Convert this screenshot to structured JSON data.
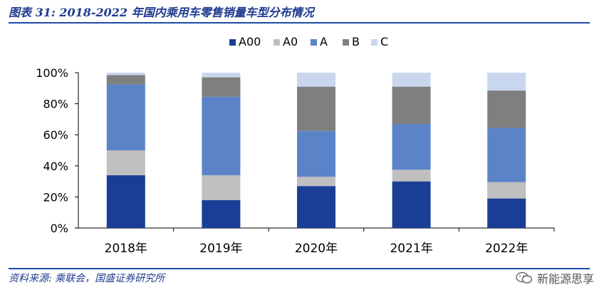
{
  "header": {
    "title": "图表 31:  2018-2022 年国内乘用车零售销量车型分布情况"
  },
  "footer": {
    "source": "资料来源:  乘联会，国盛证券研究所",
    "watermark": "新能源思享"
  },
  "chart_data": {
    "type": "bar",
    "stacked": true,
    "percent": true,
    "categories": [
      "2018年",
      "2019年",
      "2020年",
      "2021年",
      "2022年"
    ],
    "series": [
      {
        "name": "A00",
        "color": "#1a3e96",
        "values": [
          34,
          18,
          27,
          30,
          19
        ]
      },
      {
        "name": "A0",
        "color": "#bfbfbf",
        "values": [
          16,
          16,
          6,
          7.5,
          10.5
        ]
      },
      {
        "name": "A",
        "color": "#5b84c8",
        "values": [
          42.5,
          50.5,
          29.5,
          29.5,
          35
        ]
      },
      {
        "name": "B",
        "color": "#7f7f7f",
        "values": [
          6,
          12.5,
          28.5,
          24,
          24
        ]
      },
      {
        "name": "C",
        "color": "#c9d7ee",
        "values": [
          1.5,
          3,
          9,
          9,
          11.5
        ]
      }
    ],
    "ylim": [
      0,
      100
    ],
    "yticks": [
      "0%",
      "20%",
      "40%",
      "60%",
      "80%",
      "100%"
    ],
    "legend_position": "top-center",
    "grid": false
  }
}
